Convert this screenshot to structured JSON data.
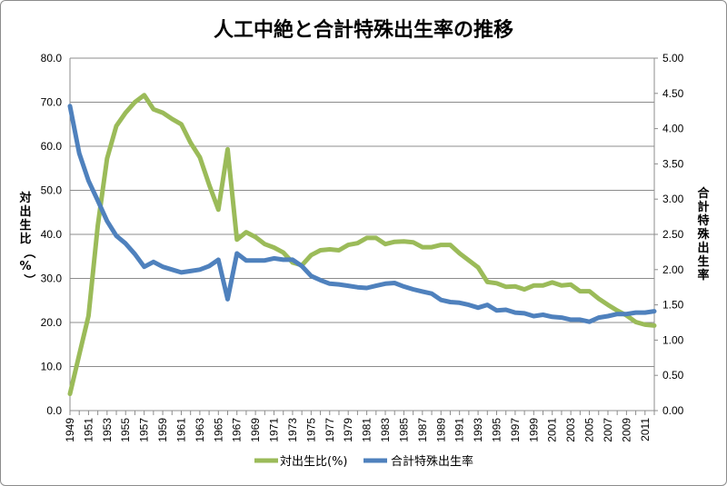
{
  "chart_data": {
    "type": "line",
    "title": "人工中絶と合計特殊出生率の推移",
    "y_left_label": "対出生比（%）",
    "y_right_label": "合計特殊出生率",
    "y_left_lim": [
      0,
      80
    ],
    "y_left_ticks": [
      "0.0",
      "10.0",
      "20.0",
      "30.0",
      "40.0",
      "50.0",
      "60.0",
      "70.0",
      "80.0"
    ],
    "y_right_lim": [
      0,
      5
    ],
    "y_right_ticks": [
      "0.00",
      "0.50",
      "1.00",
      "1.50",
      "2.00",
      "2.50",
      "3.00",
      "3.50",
      "4.00",
      "4.50",
      "5.00"
    ],
    "x": [
      1949,
      1950,
      1951,
      1952,
      1953,
      1954,
      1955,
      1956,
      1957,
      1958,
      1959,
      1960,
      1961,
      1962,
      1963,
      1964,
      1965,
      1966,
      1967,
      1968,
      1969,
      1970,
      1971,
      1972,
      1973,
      1974,
      1975,
      1976,
      1977,
      1978,
      1979,
      1980,
      1981,
      1982,
      1983,
      1984,
      1985,
      1986,
      1987,
      1988,
      1989,
      1990,
      1991,
      1992,
      1993,
      1994,
      1995,
      1996,
      1997,
      1998,
      1999,
      2000,
      2001,
      2002,
      2003,
      2004,
      2005,
      2006,
      2007,
      2008,
      2009,
      2010,
      2011,
      2012
    ],
    "x_tick_labels": [
      "1949",
      "1951",
      "1953",
      "1955",
      "1957",
      "1959",
      "1961",
      "1963",
      "1965",
      "1967",
      "1969",
      "1971",
      "1973",
      "1975",
      "1977",
      "1979",
      "1981",
      "1983",
      "1985",
      "1987",
      "1989",
      "1991",
      "1993",
      "1995",
      "1997",
      "1999",
      "2001",
      "2003",
      "2005",
      "2007",
      "2009",
      "2011"
    ],
    "grid": "horizontal",
    "legend_position": "bottom",
    "series": [
      {
        "name": "対出生比(%)",
        "axis": "left",
        "color": "#9bbb59",
        "values": [
          3.8,
          12.7,
          21.5,
          42.0,
          57.2,
          64.6,
          67.6,
          70.0,
          71.6,
          68.4,
          67.6,
          66.2,
          65.0,
          60.8,
          57.5,
          51.3,
          45.6,
          59.3,
          38.8,
          40.5,
          39.4,
          37.8,
          37.0,
          35.9,
          33.6,
          33.0,
          35.3,
          36.4,
          36.6,
          36.4,
          37.6,
          38.0,
          39.2,
          39.2,
          37.8,
          38.3,
          38.4,
          38.2,
          37.1,
          37.1,
          37.6,
          37.6,
          35.7,
          34.1,
          32.5,
          29.2,
          28.9,
          28.1,
          28.2,
          27.5,
          28.4,
          28.4,
          29.1,
          28.4,
          28.6,
          27.1,
          27.1,
          25.4,
          24.0,
          22.7,
          21.6,
          20.1,
          19.5,
          19.3
        ]
      },
      {
        "name": "合計特殊出生率",
        "axis": "right",
        "color": "#4f81bd",
        "values": [
          4.32,
          3.65,
          3.26,
          2.98,
          2.69,
          2.48,
          2.37,
          2.22,
          2.04,
          2.11,
          2.04,
          2.0,
          1.96,
          1.98,
          2.0,
          2.05,
          2.14,
          1.58,
          2.23,
          2.13,
          2.13,
          2.13,
          2.16,
          2.14,
          2.14,
          2.05,
          1.91,
          1.85,
          1.8,
          1.79,
          1.77,
          1.75,
          1.74,
          1.77,
          1.8,
          1.81,
          1.76,
          1.72,
          1.69,
          1.66,
          1.57,
          1.54,
          1.53,
          1.5,
          1.46,
          1.5,
          1.42,
          1.43,
          1.39,
          1.38,
          1.34,
          1.36,
          1.33,
          1.32,
          1.29,
          1.29,
          1.26,
          1.32,
          1.34,
          1.37,
          1.37,
          1.39,
          1.39,
          1.41
        ]
      }
    ]
  }
}
